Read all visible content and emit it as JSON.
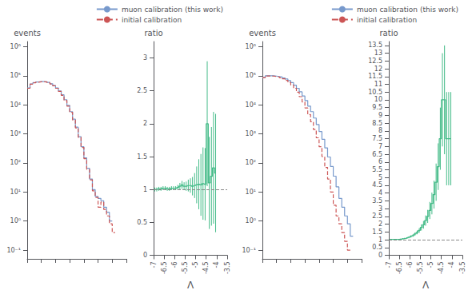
{
  "chart_data": [
    {
      "type": "histogram",
      "ylabel": "events",
      "bins": [
        -7.0,
        -6.9,
        -6.8,
        -6.7,
        -6.6,
        -6.5,
        -6.4,
        -6.3,
        -6.2,
        -6.1,
        -6.0,
        -5.9,
        -5.8,
        -5.7,
        -5.6,
        -5.5,
        -5.4,
        -5.3,
        -5.2,
        -5.1,
        -5.0,
        -4.9,
        -4.8,
        -4.7,
        -4.6,
        -4.5,
        -4.4,
        -4.3,
        -4.2,
        -4.1,
        -4.0,
        -3.9,
        -3.8,
        -3.7,
        -3.6,
        -3.5
      ],
      "series": [
        {
          "name": "muon calibration (this work)",
          "color": "#7799cc",
          "line_style": "solid",
          "values": [
            38000,
            52000,
            58000,
            61000,
            62500,
            63000,
            62000,
            59000,
            53000,
            46000,
            38000,
            30000,
            22000,
            15000,
            9500,
            5800,
            3200,
            1700,
            800,
            360,
            150,
            65,
            28,
            12,
            7,
            6,
            5,
            3,
            2,
            1,
            null,
            null,
            null,
            null,
            null
          ]
        },
        {
          "name": "initial calibration",
          "color": "#cc5555",
          "line_style": "dashed",
          "values": [
            37000,
            51000,
            57000,
            60000,
            61500,
            62000,
            61000,
            58000,
            52000,
            45000,
            37000,
            29000,
            21000,
            14000,
            9000,
            5500,
            3000,
            1600,
            760,
            340,
            140,
            60,
            26,
            11,
            6.5,
            3,
            4.5,
            2.5,
            1.5,
            0.8,
            0.4,
            null,
            null,
            null,
            null
          ]
        }
      ],
      "xlim": [
        -7,
        -3.5
      ],
      "xticks": [
        -7,
        -6.5,
        -6,
        -5.5,
        -5,
        -4.5,
        -4,
        -3.5
      ],
      "ylim": [
        0.05,
        1500000
      ],
      "yticks": [
        {
          "value": 0.1,
          "label": "10⁻¹"
        },
        {
          "value": 1,
          "label": "10⁰"
        },
        {
          "value": 10,
          "label": "10¹"
        },
        {
          "value": 100,
          "label": "10²"
        },
        {
          "value": 1000,
          "label": "10³"
        },
        {
          "value": 10000,
          "label": "10⁴"
        },
        {
          "value": 100000,
          "label": "10⁵"
        },
        {
          "value": 1000000,
          "label": "10⁶"
        }
      ],
      "log": "y",
      "grid": false,
      "legend": "upper right",
      "tick_labels": "y"
    },
    {
      "type": "step",
      "xlabel": "Λ",
      "ylabel": "ratio",
      "x": [
        -6.95,
        -6.85,
        -6.75,
        -6.65,
        -6.55,
        -6.45,
        -6.35,
        -6.25,
        -6.15,
        -6.05,
        -5.95,
        -5.85,
        -5.75,
        -5.65,
        -5.55,
        -5.45,
        -5.35,
        -5.25,
        -5.15,
        -5.05,
        -4.95,
        -4.85,
        -4.75,
        -4.65,
        -4.55,
        -4.45,
        -4.35,
        -4.25,
        -4.15,
        -4.05
      ],
      "series": [
        {
          "color": "#44bb88",
          "line_style": "solid",
          "values": [
            1.0,
            1.0,
            1.01,
            1.01,
            1.02,
            1.02,
            1.01,
            1.01,
            1.02,
            1.02,
            1.02,
            1.03,
            1.05,
            1.07,
            1.05,
            1.05,
            1.06,
            1.06,
            1.05,
            1.06,
            1.07,
            1.08,
            1.07,
            1.09,
            1.08,
            2.0,
            1.1,
            1.2,
            1.33,
            1.25
          ],
          "errors": [
            0.03,
            0.03,
            0.03,
            0.03,
            0.03,
            0.03,
            0.03,
            0.03,
            0.03,
            0.03,
            0.03,
            0.04,
            0.05,
            0.06,
            0.06,
            0.07,
            0.09,
            0.11,
            0.14,
            0.19,
            0.28,
            0.38,
            0.47,
            0.55,
            0.55,
            0.95,
            0.7,
            0.75,
            0.85,
            0.9
          ]
        }
      ],
      "reference_line": {
        "y": 1,
        "color": "#888888",
        "line_style": "dashed"
      },
      "xlim": [
        -7,
        -3.5
      ],
      "xticks": [
        -7,
        -6.5,
        -6,
        -5.5,
        -5,
        -4.5,
        -4,
        -3.5
      ],
      "ylim": [
        0,
        3.25
      ],
      "yticks": [
        0,
        0.5,
        1,
        1.5,
        2,
        2.5,
        3
      ],
      "grid": false
    },
    {
      "type": "histogram",
      "ylabel": "events",
      "bins": [
        -7.0,
        -6.9,
        -6.8,
        -6.7,
        -6.6,
        -6.5,
        -6.4,
        -6.3,
        -6.2,
        -6.1,
        -6.0,
        -5.9,
        -5.8,
        -5.7,
        -5.6,
        -5.5,
        -5.4,
        -5.3,
        -5.2,
        -5.1,
        -5.0,
        -4.9,
        -4.8,
        -4.7,
        -4.6,
        -4.5,
        -4.4,
        -4.3,
        -4.2,
        -4.1,
        -4.0,
        -3.9,
        -3.8,
        -3.7,
        -3.6,
        -3.5
      ],
      "series": [
        {
          "name": "muon calibration (this work)",
          "color": "#7799cc",
          "line_style": "solid",
          "values": [
            88000,
            100000,
            100000,
            99000,
            97000,
            94000,
            90000,
            84000,
            77000,
            68000,
            58000,
            47000,
            37000,
            28000,
            20000,
            14000,
            9000,
            5800,
            3500,
            2100,
            1200,
            650,
            330,
            160,
            75,
            35,
            15,
            6,
            3,
            1.5,
            0.8,
            0.3,
            null,
            null,
            null
          ]
        },
        {
          "name": "initial calibration",
          "color": "#cc5555",
          "line_style": "dashed",
          "values": [
            86000,
            98000,
            98000,
            97000,
            95000,
            91000,
            85000,
            78000,
            69000,
            59000,
            48000,
            37000,
            27000,
            19000,
            12500,
            7800,
            4600,
            2600,
            1400,
            730,
            360,
            165,
            70,
            28,
            10,
            3.5,
            1.5,
            0.8,
            0.4,
            0.2,
            0.1,
            null,
            null,
            null,
            null
          ]
        }
      ],
      "xlim": [
        -7,
        -3.5
      ],
      "xticks": [
        -7,
        -6.5,
        -6,
        -5.5,
        -5,
        -4.5,
        -4,
        -3.5
      ],
      "ylim": [
        0.05,
        1500000
      ],
      "yticks": [
        {
          "value": 0.1,
          "label": "10⁻¹"
        },
        {
          "value": 1,
          "label": "10⁰"
        },
        {
          "value": 10,
          "label": "10¹"
        },
        {
          "value": 100,
          "label": "10²"
        },
        {
          "value": 1000,
          "label": "10³"
        },
        {
          "value": 10000,
          "label": "10⁴"
        },
        {
          "value": 100000,
          "label": "10⁵"
        },
        {
          "value": 1000000,
          "label": "10⁶"
        }
      ],
      "log": "y",
      "grid": false,
      "legend": "upper right",
      "tick_labels": "y"
    },
    {
      "type": "step",
      "xlabel": "Λ",
      "ylabel": "ratio",
      "x": [
        -6.95,
        -6.85,
        -6.75,
        -6.65,
        -6.55,
        -6.45,
        -6.35,
        -6.25,
        -6.15,
        -6.05,
        -5.95,
        -5.85,
        -5.75,
        -5.65,
        -5.55,
        -5.45,
        -5.35,
        -5.25,
        -5.15,
        -5.05,
        -4.95,
        -4.85,
        -4.75,
        -4.65,
        -4.55,
        -4.45,
        -4.35,
        -4.25,
        -4.15,
        -4.05
      ],
      "series": [
        {
          "color": "#44bb88",
          "line_style": "solid",
          "values": [
            1.02,
            1.02,
            1.02,
            1.02,
            1.02,
            1.03,
            1.06,
            1.08,
            1.11,
            1.15,
            1.21,
            1.27,
            1.37,
            1.47,
            1.6,
            1.79,
            1.96,
            2.23,
            2.5,
            2.88,
            3.33,
            3.9,
            4.7,
            5.7,
            7.5,
            10,
            10,
            7.5,
            7.5,
            7.5
          ],
          "errors": [
            0.02,
            0.02,
            0.02,
            0.02,
            0.03,
            0.03,
            0.04,
            0.04,
            0.05,
            0.06,
            0.07,
            0.08,
            0.1,
            0.12,
            0.15,
            0.2,
            0.25,
            0.33,
            0.42,
            0.55,
            0.7,
            0.9,
            1.2,
            1.5,
            2.0,
            3.0,
            3.5,
            3.0,
            3.0,
            3.0
          ]
        }
      ],
      "reference_line": {
        "y": 1,
        "color": "#888888",
        "line_style": "dashed"
      },
      "xlim": [
        -7,
        -3.5
      ],
      "xticks": [
        -7,
        -6.5,
        -6,
        -5.5,
        -5,
        -4.5,
        -4,
        -3.5
      ],
      "ylim": [
        0,
        13.75
      ],
      "yticks": [
        0,
        0.5,
        1,
        1.5,
        2,
        2.5,
        3,
        3.5,
        4,
        4.5,
        5,
        5.5,
        6,
        6.5,
        7,
        7.5,
        8,
        8.5,
        9,
        9.5,
        10,
        10.5,
        11,
        11.5,
        12,
        12.5,
        13,
        13.5
      ],
      "grid": false
    }
  ]
}
